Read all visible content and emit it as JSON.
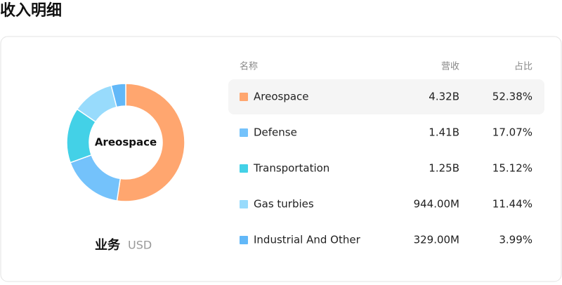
{
  "header": {
    "title": "收入明细"
  },
  "chart_data": {
    "type": "pie",
    "donut": true,
    "title": "业务",
    "subtitle": "USD",
    "categories": [
      "Areospace",
      "Defense",
      "Transportation",
      "Gas turbies",
      "Industrial And Other"
    ],
    "values": [
      52.38,
      17.07,
      15.12,
      11.44,
      3.99
    ],
    "value_labels": [
      "52.38%",
      "17.07%",
      "15.12%",
      "11.44%",
      "3.99%"
    ],
    "colors": [
      "#ffa66f",
      "#74c2fb",
      "#43d1e7",
      "#98dbfc",
      "#62b8f8"
    ],
    "highlight": 0
  },
  "table": {
    "headers": [
      "名称",
      "营收",
      "占比"
    ],
    "revenue": [
      "4.32B",
      "1.41B",
      "1.25B",
      "944.00M",
      "329.00M"
    ]
  }
}
